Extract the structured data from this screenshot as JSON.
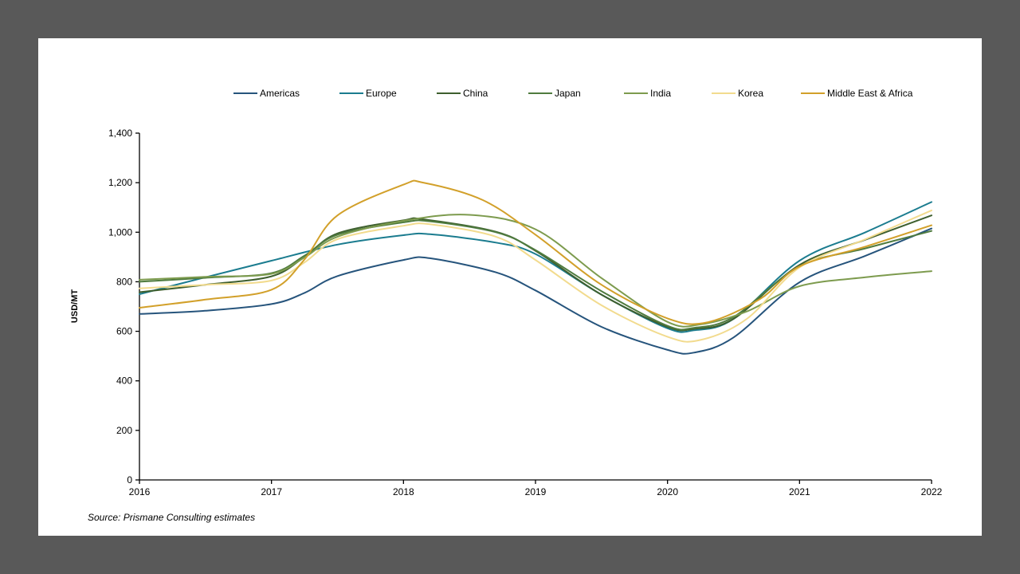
{
  "page": {
    "background": "#595959",
    "card_background": "#ffffff"
  },
  "source": "Source: Prismane Consulting estimates",
  "axes": {
    "y_title": "USD/MT",
    "y_tick_labels": [
      "0",
      "200",
      "400",
      "600",
      "800",
      "1,000",
      "1,200",
      "1,400"
    ],
    "y_tick_values": [
      0,
      200,
      400,
      600,
      800,
      1000,
      1200,
      1400
    ],
    "x_tick_labels": [
      "2016",
      "2017",
      "2018",
      "2019",
      "2020",
      "2021",
      "2022"
    ],
    "x_tick_values": [
      2016,
      2017,
      2018,
      2019,
      2020,
      2021,
      2022
    ],
    "axis_color": "#000000"
  },
  "chart_data": {
    "type": "line",
    "title": "",
    "xlabel": "",
    "ylabel": "USD/MT",
    "xlim": [
      2016,
      2022
    ],
    "ylim": [
      0,
      1400
    ],
    "grid": false,
    "legend_position": "top",
    "series": [
      {
        "name": "Americas",
        "color": "#26547C",
        "points": [
          [
            2016,
            670
          ],
          [
            2016.5,
            683
          ],
          [
            2017,
            710
          ],
          [
            2017.25,
            755
          ],
          [
            2017.5,
            823
          ],
          [
            2018,
            888
          ],
          [
            2018.2,
            895
          ],
          [
            2018.7,
            838
          ],
          [
            2019,
            765
          ],
          [
            2019.5,
            618
          ],
          [
            2020,
            525
          ],
          [
            2020.2,
            514
          ],
          [
            2020.5,
            575
          ],
          [
            2021,
            798
          ],
          [
            2021.5,
            905
          ],
          [
            2022,
            1015
          ]
        ]
      },
      {
        "name": "Europe",
        "color": "#1B7C8F",
        "points": [
          [
            2016,
            750
          ],
          [
            2016.5,
            818
          ],
          [
            2017,
            885
          ],
          [
            2017.5,
            950
          ],
          [
            2018,
            988
          ],
          [
            2018.2,
            992
          ],
          [
            2018.7,
            958
          ],
          [
            2019,
            912
          ],
          [
            2019.5,
            748
          ],
          [
            2020,
            612
          ],
          [
            2020.2,
            604
          ],
          [
            2020.5,
            650
          ],
          [
            2021,
            885
          ],
          [
            2021.5,
            1000
          ],
          [
            2022,
            1122
          ]
        ]
      },
      {
        "name": "China",
        "color": "#3E5F2E",
        "points": [
          [
            2016,
            758
          ],
          [
            2016.5,
            788
          ],
          [
            2017,
            822
          ],
          [
            2017.25,
            900
          ],
          [
            2017.5,
            995
          ],
          [
            2018,
            1048
          ],
          [
            2018.15,
            1052
          ],
          [
            2018.7,
            1002
          ],
          [
            2019,
            925
          ],
          [
            2019.5,
            748
          ],
          [
            2020,
            618
          ],
          [
            2020.2,
            610
          ],
          [
            2020.5,
            650
          ],
          [
            2021,
            868
          ],
          [
            2021.5,
            970
          ],
          [
            2022,
            1068
          ]
        ]
      },
      {
        "name": "Japan",
        "color": "#4F7B3F",
        "points": [
          [
            2016,
            800
          ],
          [
            2016.5,
            816
          ],
          [
            2017,
            835
          ],
          [
            2017.25,
            905
          ],
          [
            2017.5,
            990
          ],
          [
            2018,
            1040
          ],
          [
            2018.2,
            1044
          ],
          [
            2018.7,
            1000
          ],
          [
            2019,
            928
          ],
          [
            2019.5,
            762
          ],
          [
            2020,
            622
          ],
          [
            2020.2,
            614
          ],
          [
            2020.5,
            658
          ],
          [
            2021,
            862
          ],
          [
            2021.5,
            935
          ],
          [
            2022,
            1005
          ]
        ]
      },
      {
        "name": "India",
        "color": "#7D9B4E",
        "points": [
          [
            2016,
            808
          ],
          [
            2016.5,
            820
          ],
          [
            2017,
            832
          ],
          [
            2017.25,
            898
          ],
          [
            2017.5,
            982
          ],
          [
            2018,
            1046
          ],
          [
            2018.5,
            1070
          ],
          [
            2019,
            1012
          ],
          [
            2019.5,
            815
          ],
          [
            2020,
            638
          ],
          [
            2020.25,
            628
          ],
          [
            2020.6,
            680
          ],
          [
            2021,
            782
          ],
          [
            2021.5,
            818
          ],
          [
            2022,
            843
          ]
        ]
      },
      {
        "name": "Korea",
        "color": "#F2DB8E",
        "points": [
          [
            2016,
            773
          ],
          [
            2016.5,
            788
          ],
          [
            2017,
            805
          ],
          [
            2017.25,
            878
          ],
          [
            2017.5,
            972
          ],
          [
            2018,
            1026
          ],
          [
            2018.2,
            1032
          ],
          [
            2018.7,
            982
          ],
          [
            2019,
            888
          ],
          [
            2019.5,
            705
          ],
          [
            2020,
            578
          ],
          [
            2020.25,
            565
          ],
          [
            2020.6,
            650
          ],
          [
            2021,
            858
          ],
          [
            2021.5,
            972
          ],
          [
            2022,
            1088
          ]
        ]
      },
      {
        "name": "Middle East & Africa",
        "color": "#D2A02A",
        "points": [
          [
            2016,
            695
          ],
          [
            2016.5,
            728
          ],
          [
            2017,
            768
          ],
          [
            2017.25,
            890
          ],
          [
            2017.5,
            1068
          ],
          [
            2018,
            1192
          ],
          [
            2018.15,
            1200
          ],
          [
            2018.6,
            1130
          ],
          [
            2019,
            990
          ],
          [
            2019.5,
            788
          ],
          [
            2020,
            652
          ],
          [
            2020.3,
            636
          ],
          [
            2020.7,
            730
          ],
          [
            2021,
            862
          ],
          [
            2021.5,
            942
          ],
          [
            2022,
            1028
          ]
        ]
      }
    ]
  }
}
